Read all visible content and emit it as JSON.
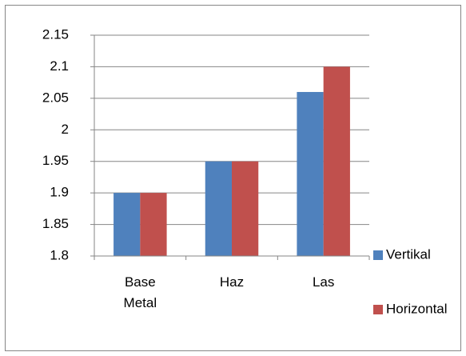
{
  "chart_data": {
    "type": "bar",
    "categories": [
      "Base Metal",
      "Haz",
      "Las"
    ],
    "series": [
      {
        "name": "Vertikal",
        "color": "#4f81bd",
        "values": [
          1.9,
          1.95,
          2.06
        ]
      },
      {
        "name": "Horizontal",
        "color": "#c0504d",
        "values": [
          1.9,
          1.95,
          2.1
        ]
      }
    ],
    "ylim": [
      1.8,
      2.15
    ],
    "yticks": [
      1.8,
      1.85,
      1.9,
      1.95,
      2,
      2.05,
      2.1,
      2.15
    ],
    "grid": true,
    "legend": "right"
  }
}
